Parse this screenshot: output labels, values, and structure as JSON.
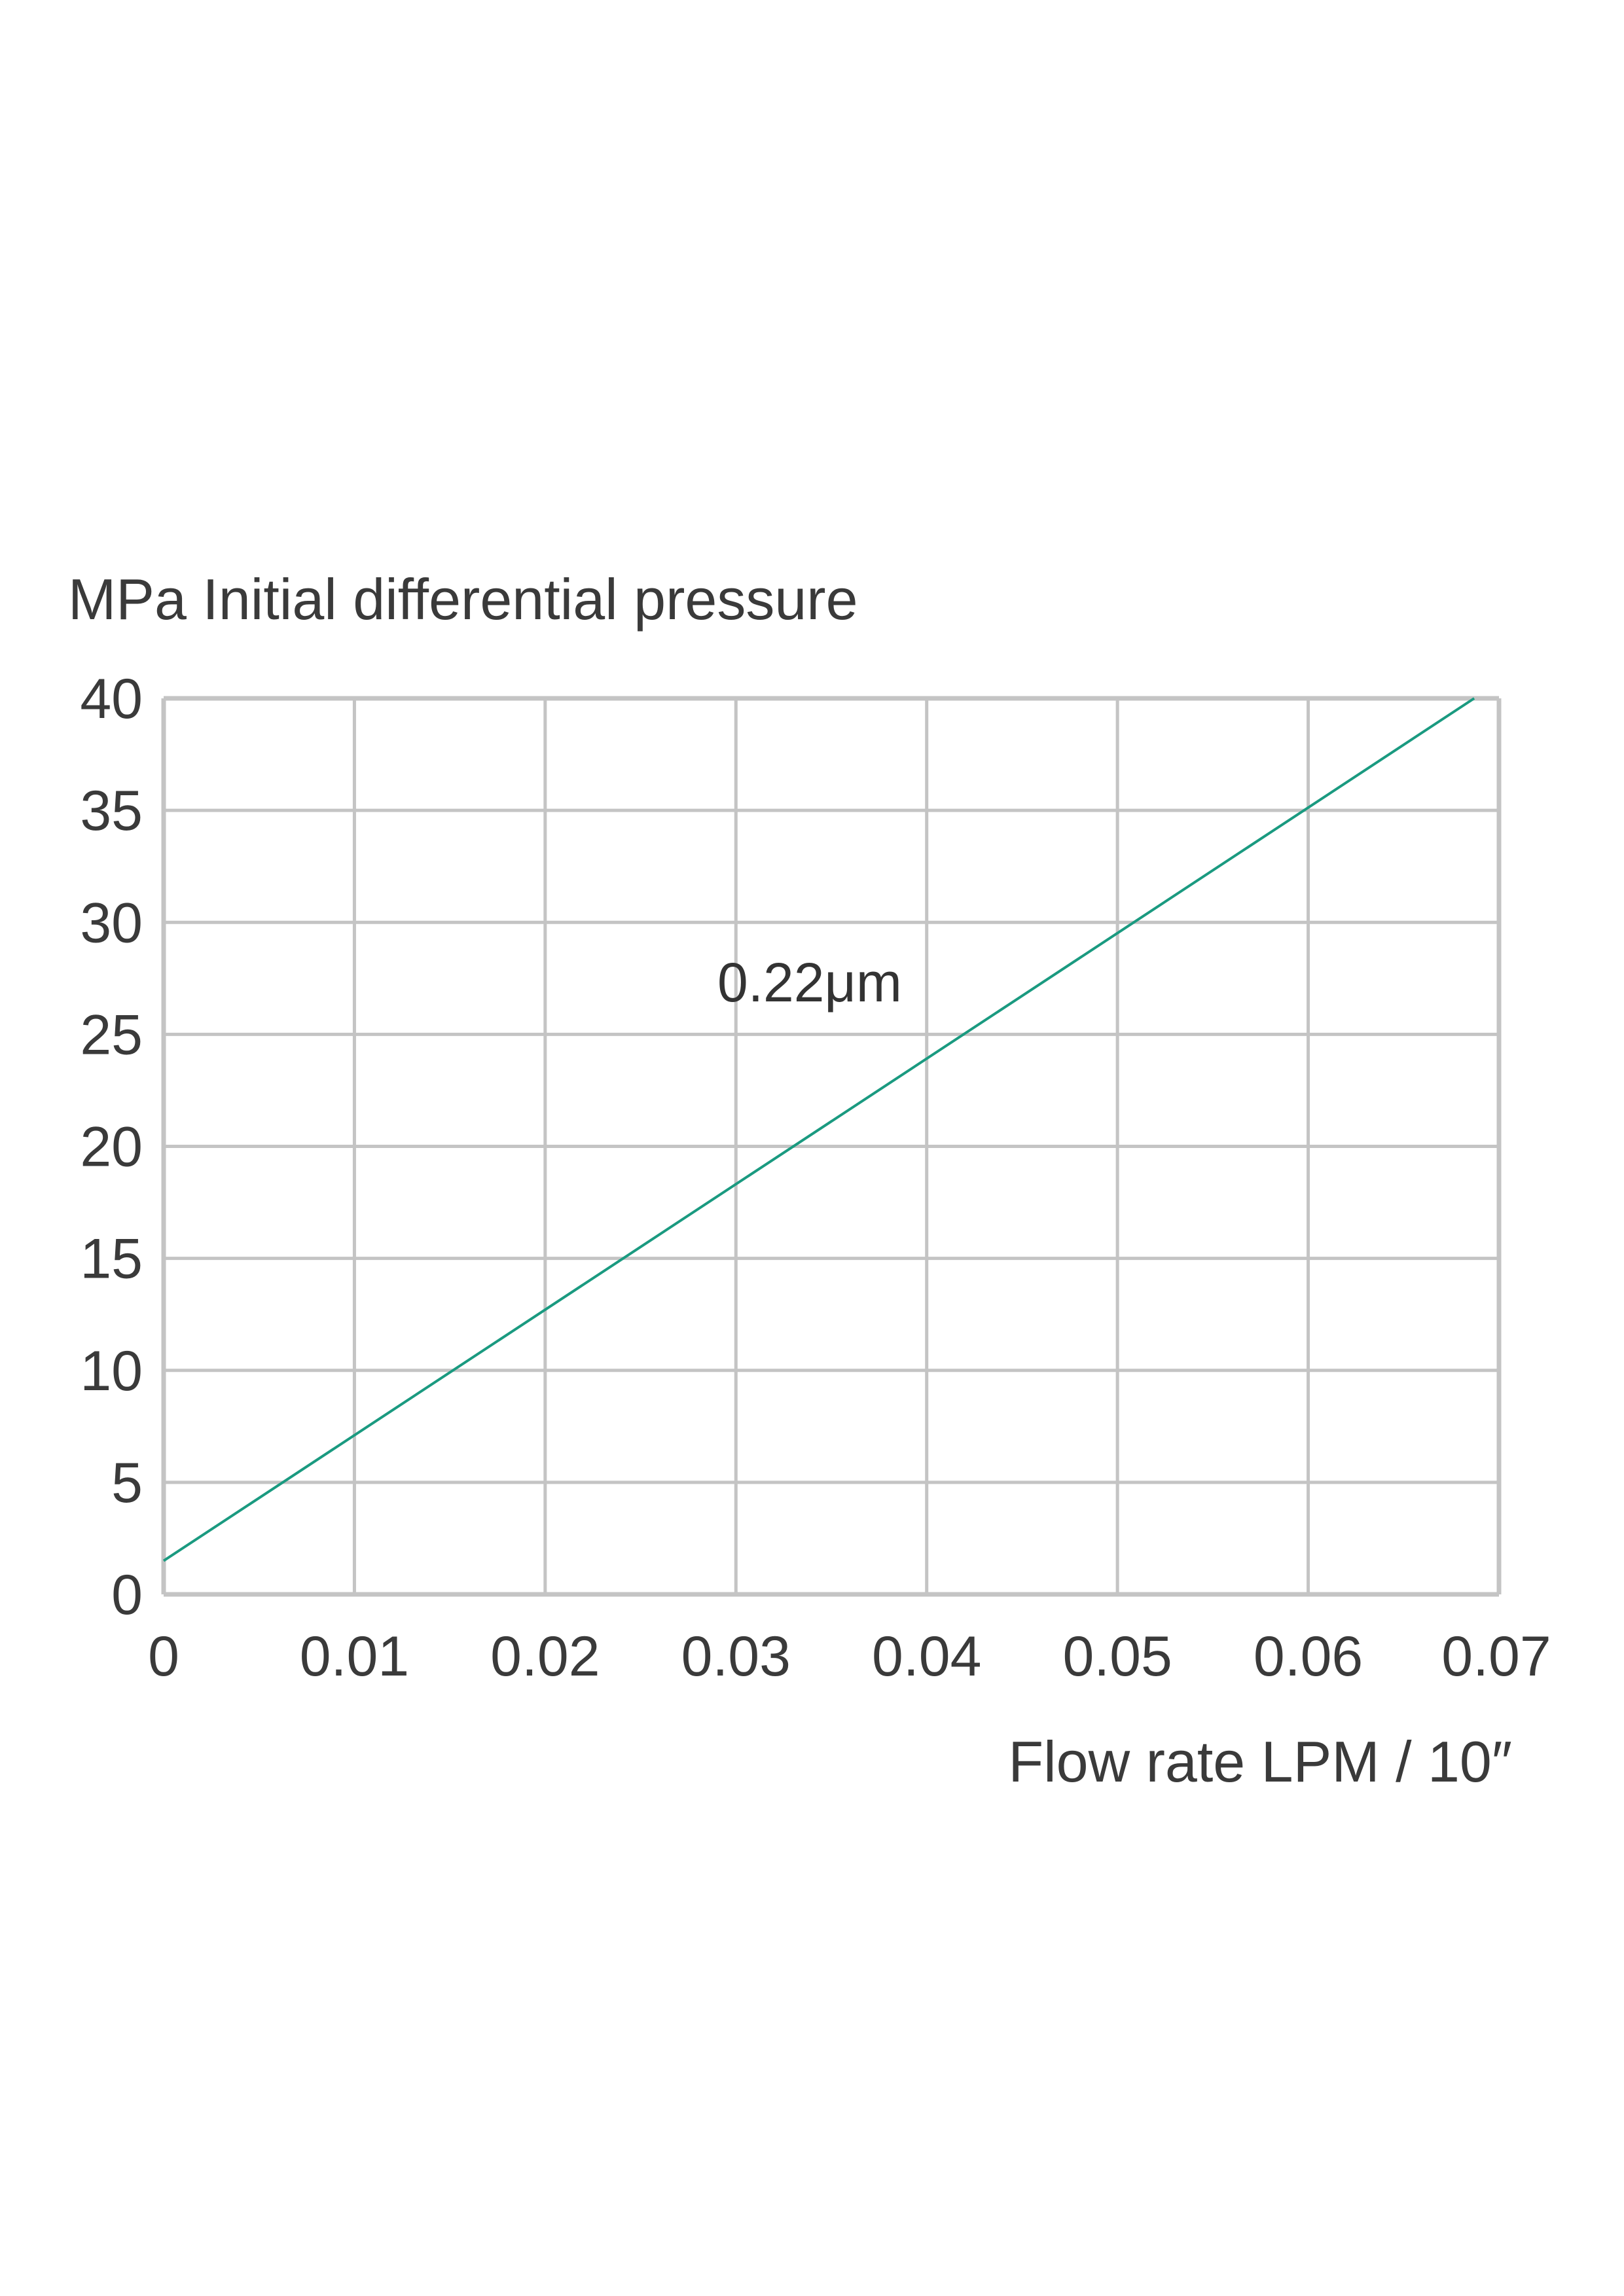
{
  "chart_data": {
    "type": "line",
    "ylabel": "MPa  Initial differential pressure",
    "xlabel": "Flow rate LPM / 10″",
    "xlim": [
      0,
      0.07
    ],
    "ylim": [
      0,
      40
    ],
    "x_ticks": [
      "0",
      "0.01",
      "0.02",
      "0.03",
      "0.04",
      "0.05",
      "0.06",
      "0.07"
    ],
    "y_ticks": [
      "0",
      "5",
      "10",
      "15",
      "20",
      "25",
      "30",
      "35",
      "40"
    ],
    "grid": true,
    "series": [
      {
        "name": "0.22μm",
        "color": "#1a9a80",
        "x": [
          0,
          0.0687
        ],
        "y": [
          1.5,
          40
        ]
      }
    ],
    "colors": {
      "grid": "#c4c4c4",
      "text": "#3a3a3a"
    }
  }
}
